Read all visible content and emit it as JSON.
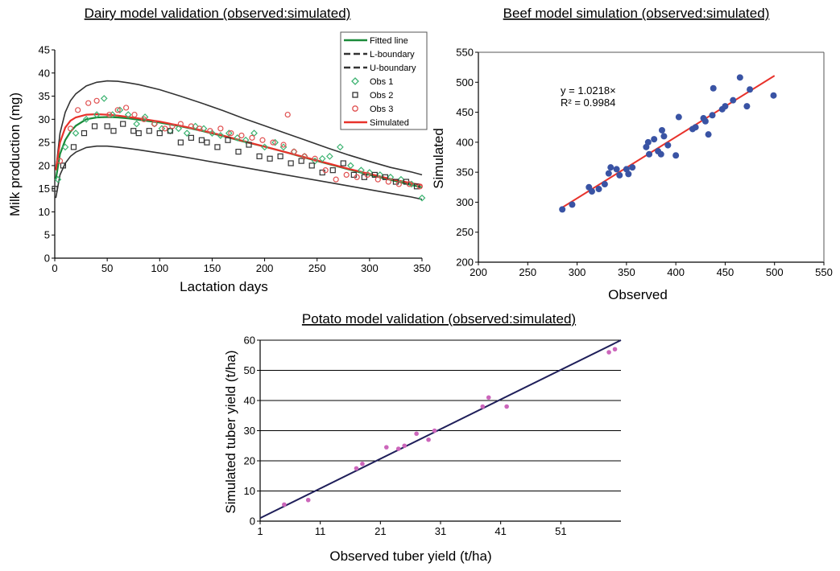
{
  "chart_data": [
    {
      "type": "scatter",
      "title": "Dairy model validation (observed:simulated)",
      "xlabel": "Lactation days",
      "ylabel": "Milk production (mg)",
      "xlim": [
        0,
        350
      ],
      "ylim": [
        0,
        45
      ],
      "x_ticks": [
        0,
        50,
        100,
        150,
        200,
        250,
        300,
        350
      ],
      "y_ticks": [
        0,
        5,
        10,
        15,
        20,
        25,
        30,
        35,
        40,
        45
      ],
      "grid": false,
      "legend_position": "top-right",
      "colors": {
        "fitted": "#1a8a3a",
        "bound": "#333333",
        "obs1": "#3cb371",
        "obs2": "#333333",
        "obs3": "#e05050",
        "simulated": "#e8322b"
      },
      "lines": [
        {
          "name": "Fitted line",
          "style": "solid",
          "x": [
            1,
            5,
            10,
            15,
            20,
            30,
            40,
            50,
            60,
            70,
            80,
            100,
            120,
            140,
            160,
            180,
            200,
            220,
            240,
            260,
            280,
            300,
            320,
            340,
            350
          ],
          "y": [
            17,
            22.5,
            25.5,
            27.3,
            28.6,
            30.0,
            30.4,
            30.5,
            30.4,
            30.2,
            29.9,
            29.3,
            28.5,
            27.5,
            26.4,
            25.2,
            24.1,
            22.9,
            21.6,
            20.4,
            19.2,
            18.0,
            16.9,
            15.8,
            15.3
          ]
        },
        {
          "name": "L-boundary",
          "style": "dashed",
          "x": [
            1,
            5,
            10,
            15,
            20,
            30,
            40,
            50,
            60,
            70,
            80,
            100,
            120,
            140,
            160,
            180,
            200,
            220,
            240,
            260,
            280,
            300,
            320,
            340,
            350
          ],
          "y": [
            13,
            18,
            20.5,
            22,
            22.9,
            23.9,
            24.2,
            24.2,
            24.0,
            23.7,
            23.4,
            22.7,
            22.0,
            21.2,
            20.4,
            19.6,
            18.8,
            18.0,
            17.2,
            16.4,
            15.6,
            14.8,
            14.0,
            13.2,
            12.7
          ]
        },
        {
          "name": "U-boundary",
          "style": "dashed",
          "x": [
            1,
            5,
            10,
            15,
            20,
            30,
            40,
            50,
            60,
            70,
            80,
            100,
            120,
            140,
            160,
            180,
            200,
            220,
            240,
            260,
            280,
            300,
            320,
            340,
            350
          ],
          "y": [
            19,
            27,
            31.5,
            34,
            35.5,
            37.2,
            38.0,
            38.3,
            38.2,
            37.9,
            37.5,
            36.4,
            35.0,
            33.5,
            31.9,
            30.2,
            28.6,
            27.0,
            25.4,
            23.8,
            22.3,
            20.9,
            19.6,
            18.6,
            18.0
          ]
        },
        {
          "name": "Simulated",
          "style": "solid",
          "x": [
            1,
            5,
            10,
            15,
            20,
            30,
            40,
            50,
            60,
            70,
            80,
            100,
            120,
            140,
            160,
            180,
            200,
            220,
            240,
            260,
            280,
            300,
            320,
            340,
            350
          ],
          "y": [
            19,
            25,
            28.2,
            29.7,
            30.4,
            31.0,
            31.1,
            31.0,
            30.8,
            30.5,
            30.2,
            29.5,
            28.6,
            27.6,
            26.5,
            25.3,
            24.1,
            22.9,
            21.7,
            20.5,
            19.3,
            18.2,
            17.1,
            16.2,
            15.8
          ]
        }
      ],
      "series": [
        {
          "name": "Obs 1",
          "marker": "diamond",
          "x": [
            3,
            10,
            20,
            30,
            40,
            47,
            55,
            62,
            70,
            78,
            86,
            95,
            102,
            110,
            118,
            126,
            134,
            142,
            150,
            158,
            166,
            174,
            182,
            190,
            200,
            210,
            218,
            228,
            238,
            248,
            255,
            262,
            272,
            282,
            292,
            300,
            310,
            320,
            330,
            340,
            350
          ],
          "y": [
            17,
            24,
            27,
            30,
            31,
            34.5,
            31,
            32,
            31,
            29,
            30.5,
            29,
            28,
            27.5,
            28,
            27,
            28.5,
            28,
            27,
            26.5,
            27,
            26,
            25.5,
            27,
            24,
            25,
            24,
            23,
            22,
            21,
            21.5,
            22,
            24,
            20,
            19,
            18.5,
            18,
            17.5,
            17,
            16,
            13
          ]
        },
        {
          "name": "Obs 2",
          "marker": "square",
          "x": [
            0,
            8,
            18,
            28,
            38,
            50,
            56,
            65,
            75,
            80,
            90,
            100,
            110,
            120,
            130,
            140,
            145,
            155,
            165,
            175,
            185,
            195,
            205,
            215,
            225,
            235,
            245,
            255,
            265,
            275,
            285,
            295,
            305,
            315,
            325,
            335,
            345
          ],
          "y": [
            15,
            20,
            24,
            27,
            28.5,
            28.5,
            27.5,
            29,
            27.5,
            27,
            27.5,
            27,
            27.5,
            25,
            26,
            25.5,
            25,
            24,
            25.5,
            23,
            24.5,
            22,
            21.5,
            22,
            20.5,
            21,
            20,
            18.5,
            19,
            20.5,
            18,
            17.5,
            18,
            17.5,
            16.5,
            16.5,
            15.5
          ]
        },
        {
          "name": "Obs 3",
          "marker": "circle",
          "x": [
            5,
            15,
            22,
            32,
            40,
            52,
            60,
            68,
            76,
            85,
            95,
            105,
            112,
            120,
            130,
            138,
            148,
            158,
            168,
            178,
            188,
            198,
            208,
            218,
            222,
            228,
            238,
            248,
            258,
            268,
            278,
            288,
            298,
            308,
            318,
            328,
            338,
            348
          ],
          "y": [
            21,
            28,
            32,
            33.5,
            34,
            31,
            32,
            32.5,
            31,
            30,
            29,
            28,
            28.5,
            29,
            28.5,
            28,
            27.5,
            28,
            27,
            26.5,
            26,
            25.5,
            25,
            24.5,
            31,
            23,
            22,
            21.5,
            19,
            17,
            18,
            17.5,
            18,
            17,
            16.5,
            16,
            16,
            15.5
          ]
        }
      ]
    },
    {
      "type": "scatter",
      "title": "Beef model simulation (observed:simulated)",
      "xlabel": "Observed",
      "ylabel": "Simulated",
      "xlim": [
        200,
        550
      ],
      "ylim": [
        200,
        550
      ],
      "x_ticks": [
        200,
        250,
        300,
        350,
        400,
        450,
        500,
        550
      ],
      "y_ticks": [
        200,
        250,
        300,
        350,
        400,
        450,
        500,
        550
      ],
      "grid": false,
      "equation": "y = 1.0218×",
      "r2": "R² = 0.9984",
      "colors": {
        "points": "#3953a4",
        "trend": "#e8322b"
      },
      "trendline": {
        "slope": 1.0218,
        "x_range": [
          285,
          500
        ]
      },
      "series": [
        {
          "x": [
            285,
            295,
            312,
            315,
            322,
            328,
            332,
            334,
            340,
            343,
            350,
            352,
            356,
            370,
            372,
            373,
            378,
            382,
            385,
            386,
            388,
            392,
            400,
            403,
            417,
            420,
            428,
            430,
            433,
            437,
            438,
            447,
            450,
            458,
            465,
            472,
            475,
            499
          ],
          "y": [
            288,
            296,
            325,
            318,
            322,
            330,
            348,
            358,
            355,
            345,
            355,
            347,
            358,
            392,
            400,
            380,
            405,
            385,
            380,
            420,
            410,
            395,
            378,
            442,
            422,
            425,
            440,
            435,
            413,
            445,
            490,
            455,
            460,
            470,
            508,
            460,
            488,
            478
          ]
        }
      ]
    },
    {
      "type": "scatter",
      "title": "Potato model validation (observed:simulated)",
      "xlabel": "Observed tuber yield (t/ha)",
      "ylabel": "Simulated tuber yield (t/ha)",
      "xlim": [
        1,
        61
      ],
      "ylim": [
        0,
        60
      ],
      "x_ticks": [
        1,
        11,
        21,
        31,
        41,
        51
      ],
      "y_ticks": [
        0,
        10,
        20,
        30,
        40,
        50,
        60
      ],
      "grid": true,
      "colors": {
        "points": "#cc66bb",
        "line": "#1f1f5a",
        "grid": "#000000"
      },
      "line": {
        "x": [
          1,
          61
        ],
        "y": [
          1,
          60
        ]
      },
      "series": [
        {
          "x": [
            5,
            9,
            17,
            18,
            22,
            24,
            25,
            27,
            29,
            30,
            38,
            39,
            42,
            59,
            60
          ],
          "y": [
            5.5,
            7,
            17.5,
            19,
            24.5,
            24,
            25,
            29,
            27,
            30,
            38,
            41,
            38,
            56,
            57
          ]
        }
      ]
    }
  ]
}
